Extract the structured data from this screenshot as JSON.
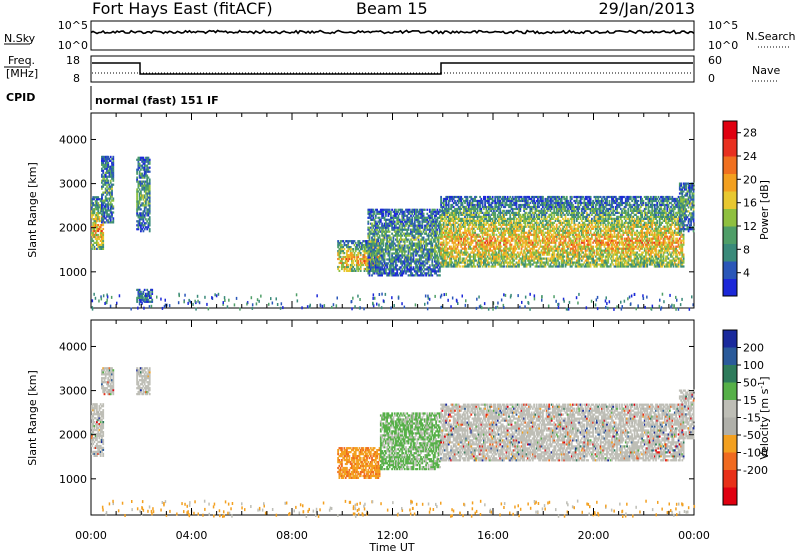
{
  "header": {
    "station": "Fort Hays East (fitACF)",
    "beam": "Beam 15",
    "date": "29/Jan/2013"
  },
  "sky_panel": {
    "left_label": "N.Sky",
    "right_label": "N.Search",
    "left_ticks": [
      "10^5",
      "10^0"
    ],
    "right_ticks": [
      "10^5",
      "10^0"
    ]
  },
  "freq_panel": {
    "left_label_1": "Freq.",
    "left_label_2": "[MHz]",
    "right_label": "Nave",
    "left_ticks": [
      "18",
      "8"
    ],
    "right_ticks": [
      "60",
      "0"
    ]
  },
  "cpid_panel": {
    "left_label": "CPID",
    "text": "normal (fast) 151 IF"
  },
  "chart_data": [
    {
      "type": "heatmap",
      "panel": "power",
      "xlabel": "",
      "ylabel": "Slant Range [km]",
      "ylim": [
        180,
        4600
      ],
      "xlim_hours": [
        0,
        24
      ],
      "yticks": [
        1000,
        2000,
        3000,
        4000
      ],
      "colorbar": {
        "label": "Power [dB]",
        "ticks": [
          "4",
          "8",
          "12",
          "16",
          "20",
          "24",
          "28"
        ],
        "range": [
          0,
          30
        ],
        "colors": [
          "#1c28d8",
          "#2a56b8",
          "#3a8a7a",
          "#4f9e68",
          "#8fc040",
          "#e8c830",
          "#f3a020",
          "#f07020",
          "#e83020",
          "#e00010"
        ]
      },
      "echo_regions": [
        {
          "t": [
            0.0,
            0.45
          ],
          "r": [
            1500,
            2700
          ],
          "level": "high"
        },
        {
          "t": [
            0.4,
            0.9
          ],
          "r": [
            2100,
            3600
          ],
          "level": "mid"
        },
        {
          "t": [
            1.8,
            2.3
          ],
          "r": [
            1900,
            3600
          ],
          "level": "mid"
        },
        {
          "t": [
            1.8,
            2.4
          ],
          "r": [
            300,
            600
          ],
          "level": "low"
        },
        {
          "t": [
            9.8,
            11.5
          ],
          "r": [
            1000,
            1700
          ],
          "level": "high"
        },
        {
          "t": [
            11.0,
            13.9
          ],
          "r": [
            900,
            2400
          ],
          "level": "mid"
        },
        {
          "t": [
            13.9,
            23.6
          ],
          "r": [
            1100,
            2700
          ],
          "level": "high"
        },
        {
          "t": [
            23.4,
            24.0
          ],
          "r": [
            1900,
            3000
          ],
          "level": "mid"
        }
      ]
    },
    {
      "type": "heatmap",
      "panel": "velocity",
      "xlabel": "Time UT",
      "ylabel": "Slant Range [km]",
      "ylim": [
        180,
        4600
      ],
      "xlim_hours": [
        0,
        24
      ],
      "xticks": [
        "00:00",
        "04:00",
        "08:00",
        "12:00",
        "16:00",
        "20:00",
        "00:00"
      ],
      "yticks": [
        1000,
        2000,
        3000,
        4000
      ],
      "colorbar": {
        "label": "Velocity [m s^-1]",
        "ticks": [
          "200",
          "100",
          "50",
          "15",
          "-15",
          "-50",
          "-100",
          "-200"
        ],
        "colors": [
          "#1a2a9c",
          "#2a5a9a",
          "#2e7b5b",
          "#56b048",
          "#bebeb6",
          "#b0b0aa",
          "#f3a020",
          "#f06a20",
          "#e83018",
          "#e00010"
        ]
      },
      "echo_regions": [
        {
          "t": [
            0.0,
            0.45
          ],
          "r": [
            1500,
            2700
          ],
          "level": "ground"
        },
        {
          "t": [
            0.4,
            0.9
          ],
          "r": [
            2900,
            3500
          ],
          "level": "ground"
        },
        {
          "t": [
            1.8,
            2.3
          ],
          "r": [
            2900,
            3500
          ],
          "level": "ground"
        },
        {
          "t": [
            9.8,
            11.5
          ],
          "r": [
            1000,
            1700
          ],
          "level": "away"
        },
        {
          "t": [
            11.5,
            13.9
          ],
          "r": [
            1200,
            2500
          ],
          "level": "toward"
        },
        {
          "t": [
            13.9,
            23.6
          ],
          "r": [
            1400,
            2700
          ],
          "level": "ground"
        },
        {
          "t": [
            23.4,
            24.0
          ],
          "r": [
            1900,
            3000
          ],
          "level": "ground"
        }
      ]
    }
  ]
}
